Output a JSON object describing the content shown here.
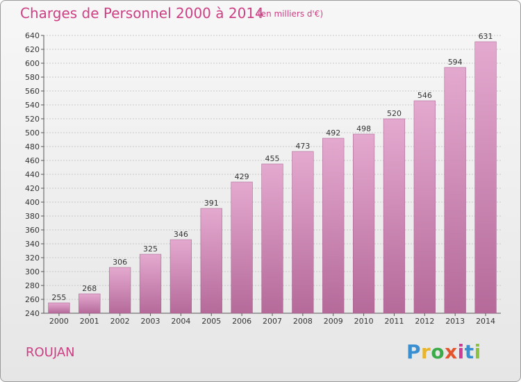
{
  "title": "Charges de Personnel 2000 à 2014",
  "subtitle": "(en milliers d'€)",
  "commune": "ROUJAN",
  "logo_text": "Proxiti",
  "colors": {
    "bar_top": "#e4a9cf",
    "bar_bottom": "#b56a9a",
    "title": "#cc3f83"
  },
  "chart_data": {
    "type": "bar",
    "categories": [
      "2000",
      "2001",
      "2002",
      "2003",
      "2004",
      "2005",
      "2006",
      "2007",
      "2008",
      "2009",
      "2010",
      "2011",
      "2012",
      "2013",
      "2014"
    ],
    "values": [
      255,
      268,
      306,
      325,
      346,
      391,
      429,
      455,
      473,
      492,
      498,
      520,
      546,
      594,
      631
    ],
    "ylim": [
      240,
      640
    ],
    "yticks": [
      240,
      260,
      280,
      300,
      320,
      340,
      360,
      380,
      400,
      420,
      440,
      460,
      480,
      500,
      520,
      540,
      560,
      580,
      600,
      620,
      640
    ],
    "grid": true
  }
}
